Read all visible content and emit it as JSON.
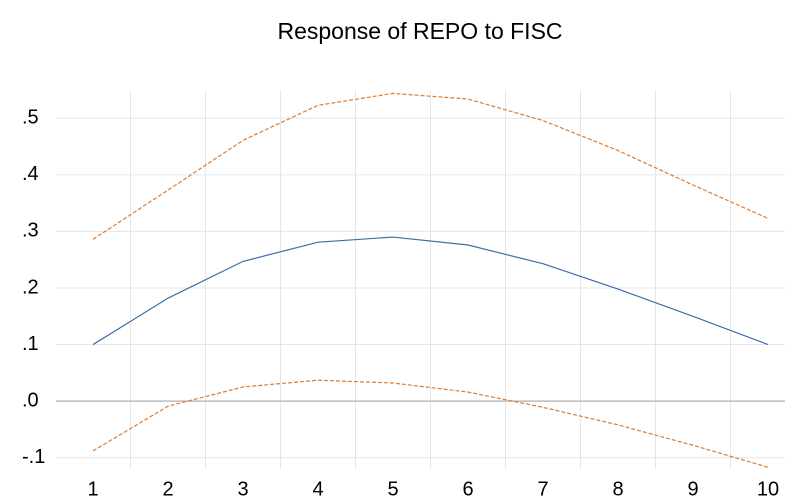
{
  "chart_data": {
    "type": "line",
    "title": "Response of REPO to FISC",
    "categories": [
      "1",
      "2",
      "3",
      "4",
      "5",
      "6",
      "7",
      "8",
      "9",
      "10"
    ],
    "series": [
      {
        "color": "#e07b2c",
        "dashed": true,
        "values": [
          0.286,
          0.373,
          0.461,
          0.523,
          0.544,
          0.534,
          0.496,
          0.443,
          0.382,
          0.323
        ]
      },
      {
        "color": "#3b6ea8",
        "dashed": false,
        "values": [
          0.1,
          0.182,
          0.247,
          0.281,
          0.29,
          0.276,
          0.243,
          0.198,
          0.15,
          0.1
        ]
      },
      {
        "color": "#e07b2c",
        "dashed": true,
        "values": [
          -0.088,
          -0.009,
          0.025,
          0.037,
          0.032,
          0.016,
          -0.011,
          -0.042,
          -0.078,
          -0.117
        ]
      }
    ],
    "ylim": [
      -0.12,
      0.55
    ],
    "yticks": [
      {
        "value": -0.1,
        "label": "-.1"
      },
      {
        "value": 0,
        "label": ".0"
      },
      {
        "value": 0.1,
        "label": ".1"
      },
      {
        "value": 0.2,
        "label": ".2"
      },
      {
        "value": 0.3,
        "label": ".3"
      },
      {
        "value": 0.4,
        "label": ".4"
      },
      {
        "value": 0.5,
        "label": ".5"
      }
    ],
    "grid": true
  }
}
